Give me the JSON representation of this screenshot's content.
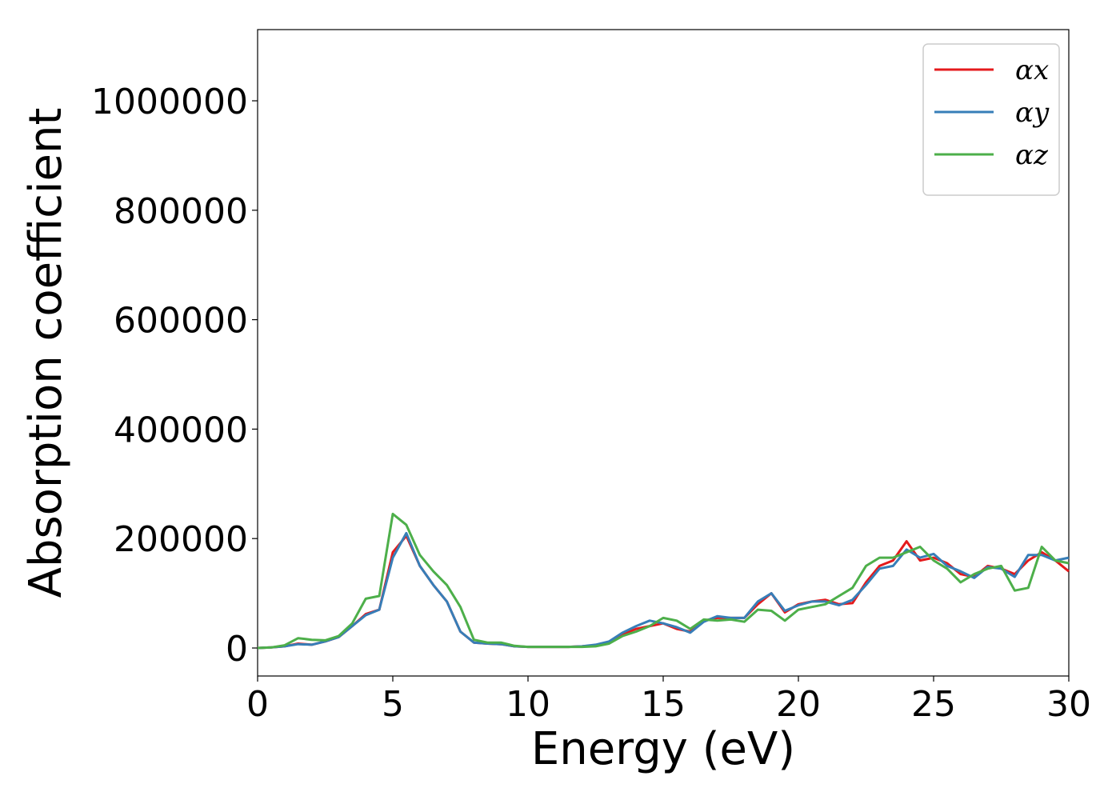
{
  "chart_data": {
    "type": "line",
    "x_label": "Energy (eV)",
    "y_label": "Absorption coefficient",
    "x": [
      0,
      0.5,
      1,
      1.5,
      2,
      2.5,
      3,
      3.5,
      4,
      4.5,
      5,
      5.5,
      6,
      6.5,
      7,
      7.5,
      8,
      8.5,
      9,
      9.5,
      10,
      10.5,
      11,
      11.5,
      12,
      12.5,
      13,
      13.5,
      14,
      14.5,
      15,
      15.5,
      16,
      16.5,
      17,
      17.5,
      18,
      18.5,
      19,
      19.5,
      20,
      20.5,
      21,
      21.5,
      22,
      22.5,
      23,
      23.5,
      24,
      24.5,
      25,
      25.5,
      26,
      26.5,
      27,
      27.5,
      28,
      28.5,
      29,
      29.5,
      30
    ],
    "series": [
      {
        "name": "αx",
        "color": "#e41a1c",
        "values": [
          0,
          1000,
          3000,
          8000,
          6000,
          12000,
          20000,
          40000,
          62000,
          70000,
          175000,
          205000,
          150000,
          115000,
          85000,
          30000,
          10000,
          8000,
          7000,
          3000,
          2000,
          2000,
          2000,
          2000,
          3000,
          5000,
          10000,
          25000,
          35000,
          40000,
          45000,
          35000,
          30000,
          50000,
          55000,
          55000,
          55000,
          80000,
          100000,
          65000,
          80000,
          85000,
          88000,
          80000,
          82000,
          120000,
          150000,
          160000,
          195000,
          160000,
          165000,
          155000,
          135000,
          130000,
          150000,
          145000,
          135000,
          160000,
          175000,
          160000,
          140000
        ]
      },
      {
        "name": "αy",
        "color": "#377eb8",
        "values": [
          0,
          1000,
          3000,
          7000,
          6000,
          12000,
          20000,
          40000,
          60000,
          70000,
          165000,
          210000,
          150000,
          115000,
          85000,
          30000,
          10000,
          8000,
          7000,
          3000,
          2000,
          2000,
          2000,
          2000,
          3000,
          6000,
          12000,
          28000,
          40000,
          50000,
          45000,
          38000,
          28000,
          48000,
          58000,
          55000,
          55000,
          85000,
          100000,
          68000,
          78000,
          85000,
          85000,
          78000,
          88000,
          115000,
          145000,
          150000,
          180000,
          165000,
          172000,
          150000,
          140000,
          128000,
          148000,
          145000,
          130000,
          170000,
          170000,
          160000,
          165000
        ]
      },
      {
        "name": "αz",
        "color": "#4daf4a",
        "values": [
          0,
          1000,
          5000,
          18000,
          15000,
          14000,
          22000,
          45000,
          90000,
          95000,
          245000,
          225000,
          170000,
          140000,
          115000,
          75000,
          15000,
          10000,
          10000,
          4000,
          2000,
          2000,
          2000,
          2000,
          2000,
          3000,
          8000,
          22000,
          30000,
          40000,
          55000,
          50000,
          35000,
          52000,
          50000,
          52000,
          48000,
          70000,
          68000,
          50000,
          70000,
          75000,
          80000,
          95000,
          110000,
          150000,
          165000,
          165000,
          175000,
          185000,
          160000,
          145000,
          120000,
          135000,
          145000,
          150000,
          105000,
          110000,
          185000,
          160000,
          155000
        ]
      }
    ],
    "xlim": [
      0,
      30
    ],
    "xticks": [
      0,
      5,
      10,
      15,
      20,
      25,
      30
    ],
    "ylim": [
      -51170,
      1130117
    ],
    "yticks": [
      0,
      200000,
      400000,
      600000,
      800000,
      1000000
    ],
    "legend": "upper right",
    "grid": false
  }
}
